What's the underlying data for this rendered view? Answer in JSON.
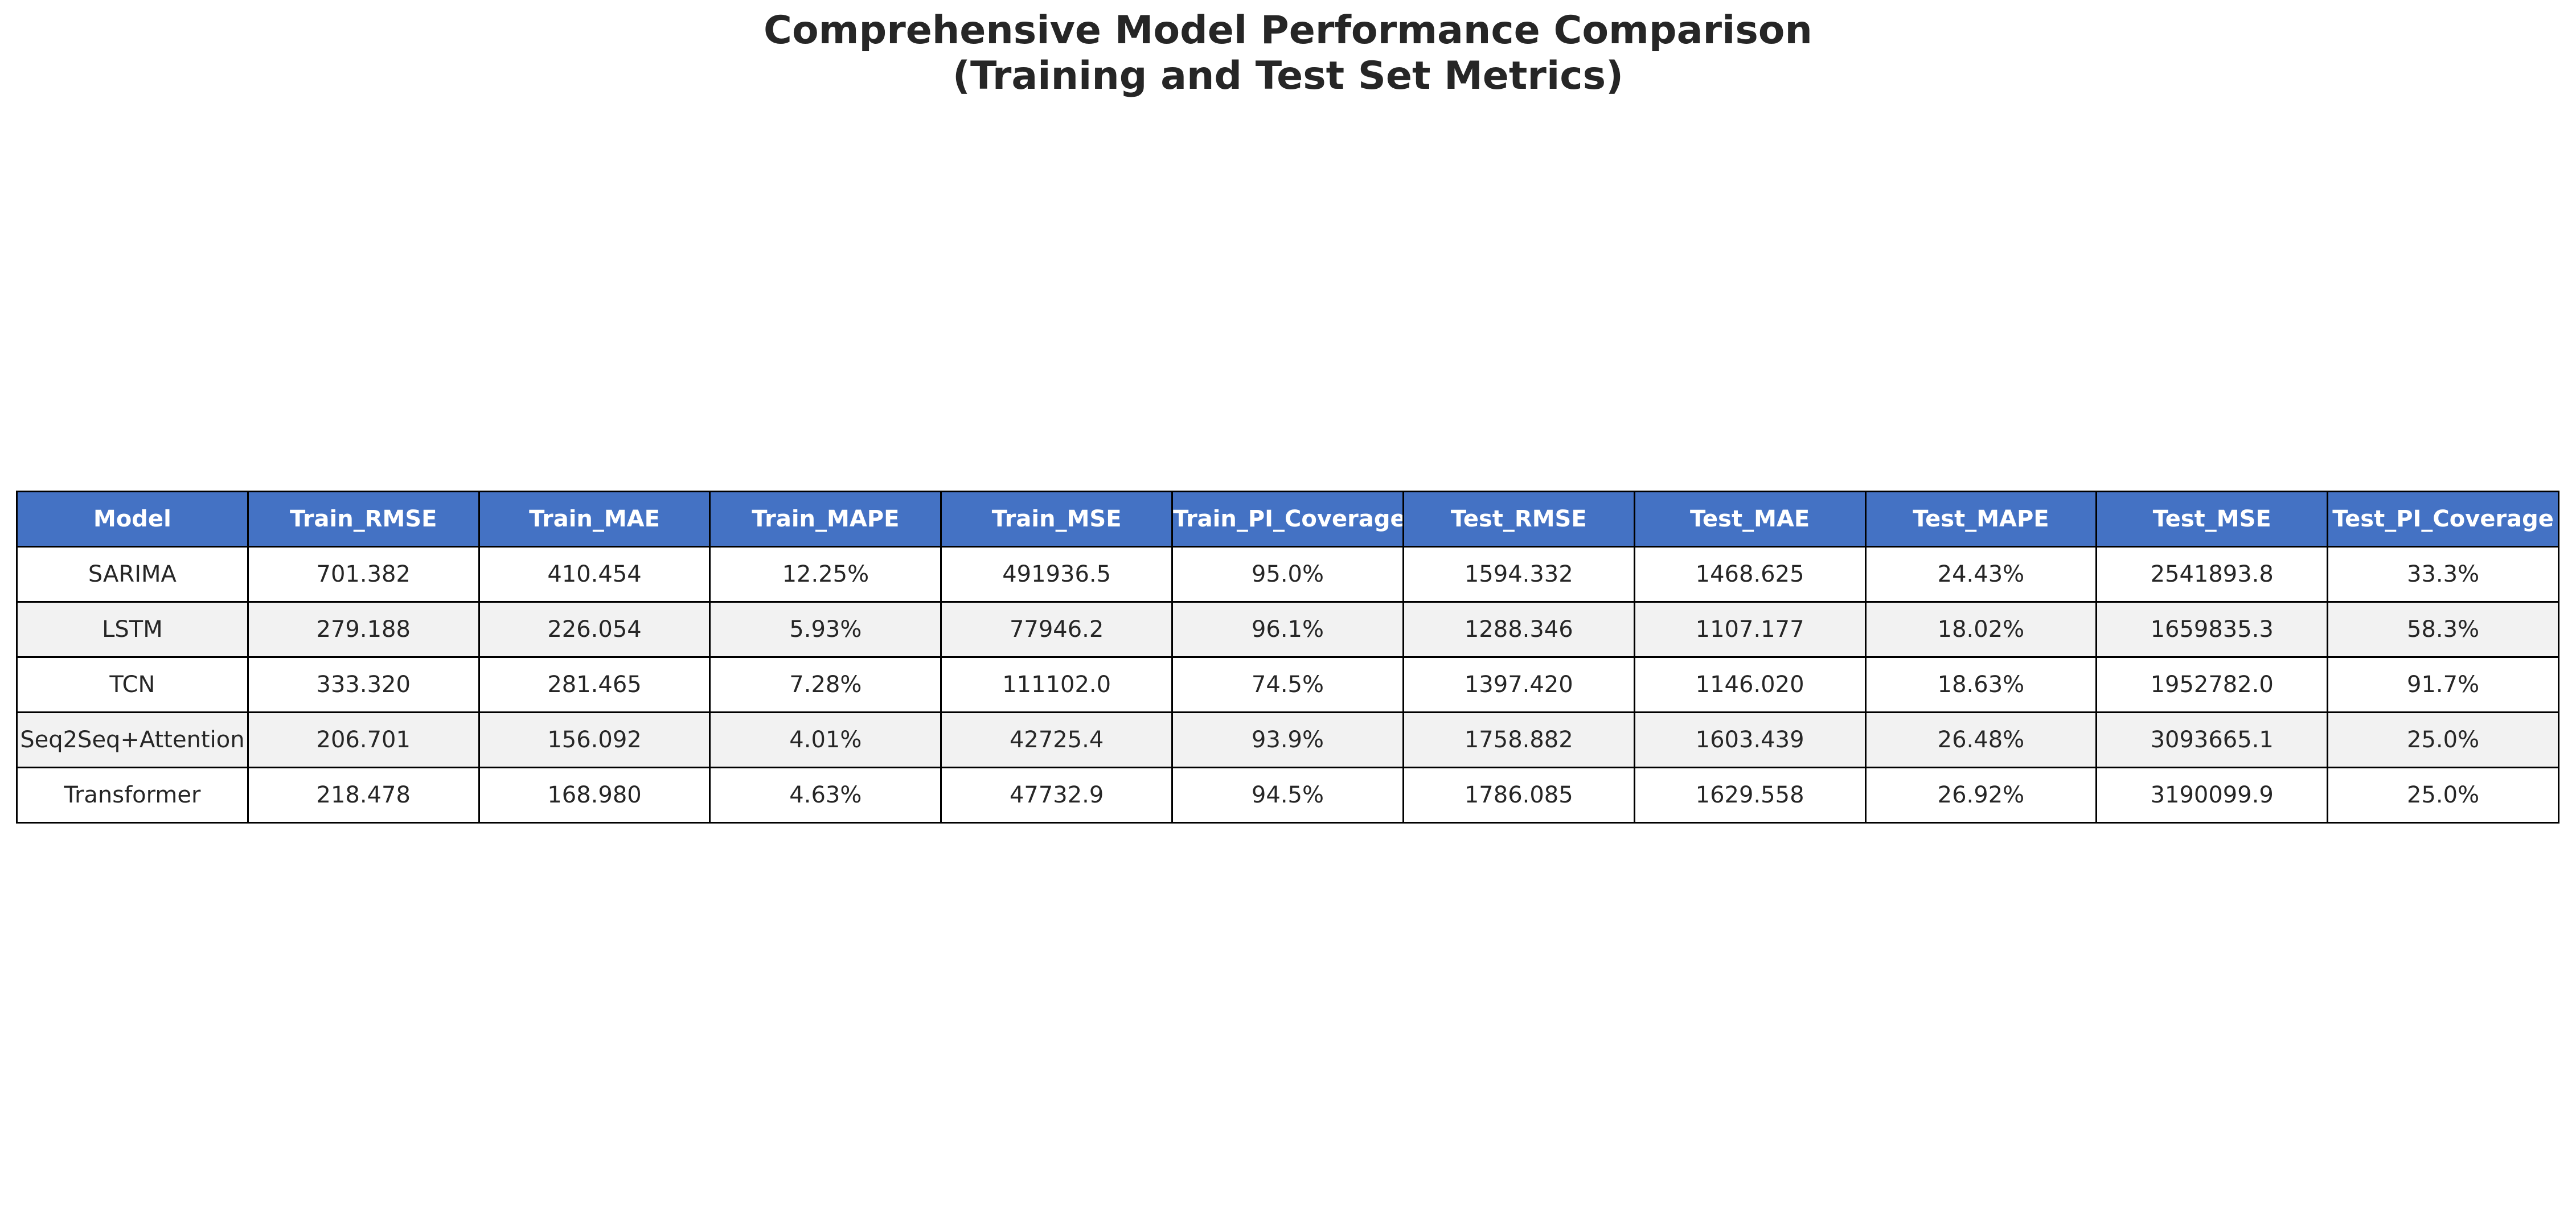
{
  "title": {
    "line1": "Comprehensive Model Performance Comparison",
    "line2": "(Training and Test Set Metrics)"
  },
  "colors": {
    "header_bg": "#4472C4",
    "header_text": "#FFFFFF",
    "row_odd_bg": "#FFFFFF",
    "row_even_bg": "#F2F2F2",
    "border": "#000000"
  },
  "chart_data": {
    "type": "table",
    "title": "Comprehensive Model Performance Comparison (Training and Test Set Metrics)",
    "columns": [
      "Model",
      "Train_RMSE",
      "Train_MAE",
      "Train_MAPE",
      "Train_MSE",
      "Train_PI_Coverage",
      "Test_RMSE",
      "Test_MAE",
      "Test_MAPE",
      "Test_MSE",
      "Test_PI_Coverage"
    ],
    "rows": [
      [
        "SARIMA",
        "701.382",
        "410.454",
        "12.25%",
        "491936.5",
        "95.0%",
        "1594.332",
        "1468.625",
        "24.43%",
        "2541893.8",
        "33.3%"
      ],
      [
        "LSTM",
        "279.188",
        "226.054",
        "5.93%",
        "77946.2",
        "96.1%",
        "1288.346",
        "1107.177",
        "18.02%",
        "1659835.3",
        "58.3%"
      ],
      [
        "TCN",
        "333.320",
        "281.465",
        "7.28%",
        "111102.0",
        "74.5%",
        "1397.420",
        "1146.020",
        "18.63%",
        "1952782.0",
        "91.7%"
      ],
      [
        "Seq2Seq+Attention",
        "206.701",
        "156.092",
        "4.01%",
        "42725.4",
        "93.9%",
        "1758.882",
        "1603.439",
        "26.48%",
        "3093665.1",
        "25.0%"
      ],
      [
        "Transformer",
        "218.478",
        "168.980",
        "4.63%",
        "47732.9",
        "94.5%",
        "1786.085",
        "1629.558",
        "26.92%",
        "3190099.9",
        "25.0%"
      ]
    ]
  }
}
